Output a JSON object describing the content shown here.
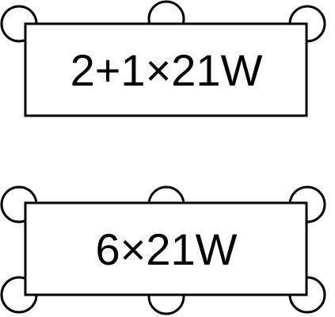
{
  "colors": {
    "stroke": "#000000",
    "fill": "#ffffff"
  },
  "diagrams": [
    {
      "label": "2+1×21W",
      "top_pins": 3,
      "bottom_pins": 0
    },
    {
      "label": "6×21W",
      "top_pins": 3,
      "bottom_pins": 3
    }
  ]
}
